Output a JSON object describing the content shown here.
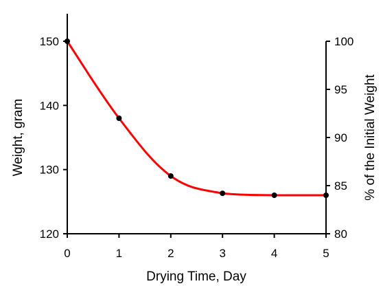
{
  "chart_data": {
    "type": "line",
    "title": "",
    "xlabel": "Drying Time, Day",
    "ylabel": "Weight, gram",
    "ylabel_right": "% of the Initial Weight",
    "x": [
      0,
      1,
      2,
      3,
      4,
      5
    ],
    "series": [
      {
        "values": [
          150,
          138,
          129,
          126.3,
          126,
          126
        ]
      }
    ],
    "xlim": [
      0,
      5
    ],
    "ylim": [
      120,
      150
    ],
    "ylim_right": [
      80,
      100
    ],
    "xticks": [
      "0",
      "1",
      "2",
      "3",
      "4",
      "5"
    ],
    "yticks": [
      "120",
      "130",
      "140",
      "150"
    ],
    "yticks_right": [
      "80",
      "85",
      "90",
      "95",
      "100"
    ],
    "line_color": "#ff0000",
    "marker_color": "#000000",
    "grid": false,
    "legend": "none"
  }
}
